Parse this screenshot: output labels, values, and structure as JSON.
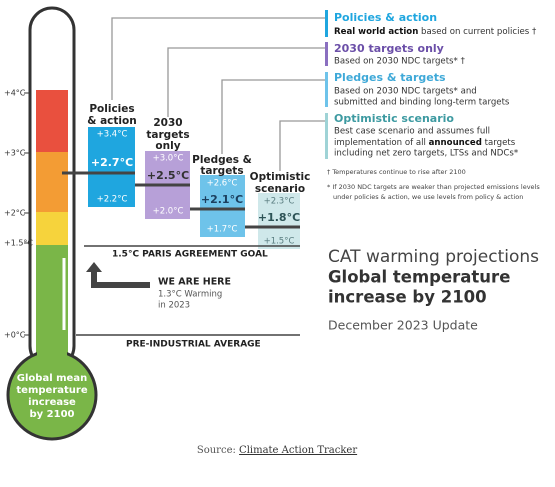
{
  "scale": [
    "+4°C",
    "+3°C",
    "+2°C",
    "+1.5°C",
    "+0°C"
  ],
  "scenarios": [
    {
      "label": [
        "Policies",
        "& action"
      ],
      "high": "+3.4°C",
      "mid": "+2.7°C",
      "low": "+2.2°C"
    },
    {
      "label": [
        "2030",
        "targets",
        "only"
      ],
      "high": "+3.0°C",
      "mid": "+2.5°C",
      "low": "+2.0°C"
    },
    {
      "label": [
        "Pledges &",
        "targets"
      ],
      "high": "+2.6°C",
      "mid": "+2.1°C",
      "low": "+1.7°C"
    },
    {
      "label": [
        "Optimistic",
        "scenario"
      ],
      "high": "+2.3°C",
      "mid": "+1.8°C",
      "low": "+1.5°C"
    }
  ],
  "legend": [
    {
      "title": "Policies & action",
      "bold": "Real world action",
      "rest": " based on current policies †"
    },
    {
      "title": "2030 targets only",
      "lines": [
        "Based on 2030 NDC targets* †"
      ]
    },
    {
      "title": "Pledges & targets",
      "lines": [
        "Based on 2030 NDC targets* and",
        "submitted and binding long-term targets"
      ]
    },
    {
      "title": "Optimistic scenario",
      "lines": [
        "Best case scenario and assumes full"
      ],
      "pre": "implementation of all ",
      "bold": "announced",
      "post": " targets",
      "lines2": [
        "including net zero targets, LTSs and NDCs*"
      ]
    }
  ],
  "footnotes": [
    "† Temperatures continue to rise after 2100",
    "* If 2030 NDC targets are weaker than projected emissions levels",
    "under policies & action, we use levels from policy & action"
  ],
  "paris": "1.5°C PARIS AGREEMENT GOAL",
  "here": {
    "title": "WE ARE HERE",
    "lines": [
      "1.3°C Warming",
      "in 2023"
    ]
  },
  "preindustrial": "PRE-INDUSTRIAL AVERAGE",
  "bulb": [
    "Global mean",
    "temperature",
    "increase",
    "by 2100"
  ],
  "heading": {
    "title": "CAT warming projections",
    "subtitle": [
      "Global temperature",
      "increase by 2100"
    ],
    "date": "December 2023 Update"
  },
  "source": {
    "prefix": "Source: ",
    "link": "Climate Action Tracker"
  }
}
